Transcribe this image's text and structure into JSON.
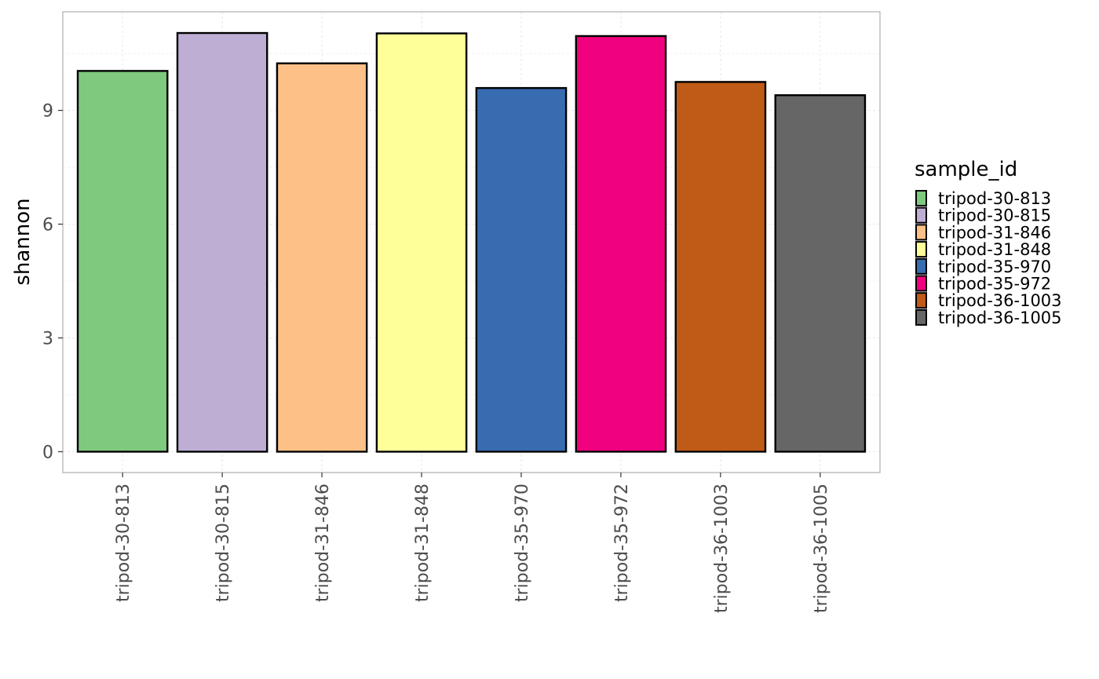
{
  "chart_data": {
    "type": "bar",
    "categories": [
      "tripod-30-813",
      "tripod-30-815",
      "tripod-31-846",
      "tripod-31-848",
      "tripod-35-970",
      "tripod-35-972",
      "tripod-36-1003",
      "tripod-36-1005"
    ],
    "values": [
      10.04,
      11.04,
      10.24,
      11.03,
      9.59,
      10.96,
      9.75,
      9.4
    ],
    "colors": [
      "#7FC97F",
      "#BEAED4",
      "#FDC086",
      "#FFFF99",
      "#386CB0",
      "#F0027F",
      "#BF5B17",
      "#666666"
    ],
    "xlabel": "",
    "ylabel": "shannon",
    "ylim": [
      -0.55,
      11.6
    ],
    "yticks": [
      0,
      3,
      6,
      9
    ],
    "grid": true,
    "legend": {
      "title": "sample_id",
      "position": "right",
      "entries": [
        "tripod-30-813",
        "tripod-30-815",
        "tripod-31-846",
        "tripod-31-848",
        "tripod-35-970",
        "tripod-35-972",
        "tripod-36-1003",
        "tripod-36-1005"
      ]
    }
  }
}
